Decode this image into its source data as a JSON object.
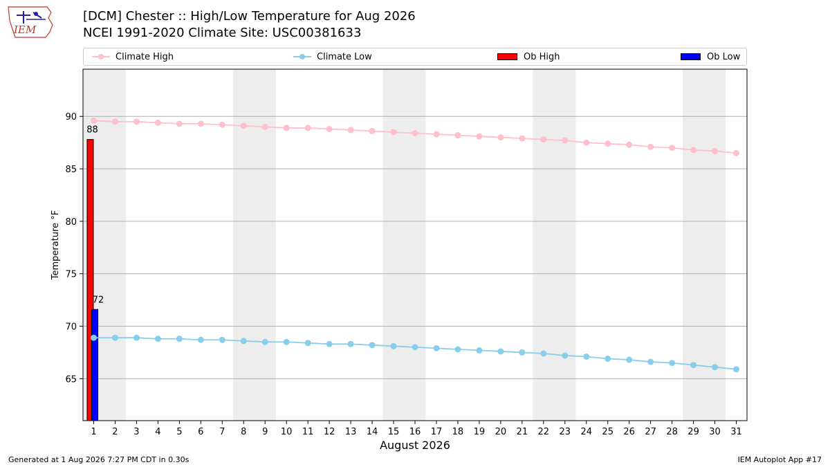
{
  "header": {
    "title_line1": "[DCM] Chester :: High/Low Temperature for Aug 2026",
    "title_line2": "NCEI 1991-2020 Climate Site: USC00381633",
    "logo_text": "IEM"
  },
  "footer": {
    "generated": "Generated at 1 Aug 2026 7:27 PM CDT in 0.30s",
    "app": "IEM Autoplot App #17"
  },
  "legend": [
    {
      "label": "Climate High",
      "color": "#ffc0cb",
      "marker": "line-dot"
    },
    {
      "label": "Climate Low",
      "color": "#87ceeb",
      "marker": "line-dot"
    },
    {
      "label": "Ob High",
      "color": "#ff0000",
      "marker": "box"
    },
    {
      "label": "Ob Low",
      "color": "#0000ff",
      "marker": "box"
    }
  ],
  "chart_data": {
    "type": "line",
    "xlabel": "August 2026",
    "ylabel": "Temperature °F",
    "x": [
      1,
      2,
      3,
      4,
      5,
      6,
      7,
      8,
      9,
      10,
      11,
      12,
      13,
      14,
      15,
      16,
      17,
      18,
      19,
      20,
      21,
      22,
      23,
      24,
      25,
      26,
      27,
      28,
      29,
      30,
      31
    ],
    "xlim": [
      0.5,
      31.5
    ],
    "ylim": [
      61,
      94.5
    ],
    "yticks": [
      65,
      70,
      75,
      80,
      85,
      90
    ],
    "grid": "horizontal",
    "weekend_shading": [
      [
        0.5,
        2.5
      ],
      [
        7.5,
        9.5
      ],
      [
        14.5,
        16.5
      ],
      [
        21.5,
        23.5
      ],
      [
        28.5,
        30.5
      ]
    ],
    "series": [
      {
        "name": "Climate High",
        "color": "#ffc0cb",
        "values": [
          89.6,
          89.5,
          89.5,
          89.4,
          89.3,
          89.3,
          89.2,
          89.1,
          89.0,
          88.9,
          88.9,
          88.8,
          88.7,
          88.6,
          88.5,
          88.4,
          88.3,
          88.2,
          88.1,
          88.0,
          87.9,
          87.8,
          87.7,
          87.5,
          87.4,
          87.3,
          87.1,
          87.0,
          86.8,
          86.7,
          86.5
        ]
      },
      {
        "name": "Climate Low",
        "color": "#87ceeb",
        "values": [
          68.9,
          68.9,
          68.9,
          68.8,
          68.8,
          68.7,
          68.7,
          68.6,
          68.5,
          68.5,
          68.4,
          68.3,
          68.3,
          68.2,
          68.1,
          68.0,
          67.9,
          67.8,
          67.7,
          67.6,
          67.5,
          67.4,
          67.2,
          67.1,
          66.9,
          66.8,
          66.6,
          66.5,
          66.3,
          66.1,
          65.9
        ]
      }
    ],
    "observations": [
      {
        "name": "Ob High",
        "day": 1,
        "value": 87.8,
        "label": "88",
        "color": "#ff0000"
      },
      {
        "name": "Ob Low",
        "day": 1,
        "value": 71.6,
        "label": "72",
        "color": "#0000ff"
      }
    ]
  }
}
